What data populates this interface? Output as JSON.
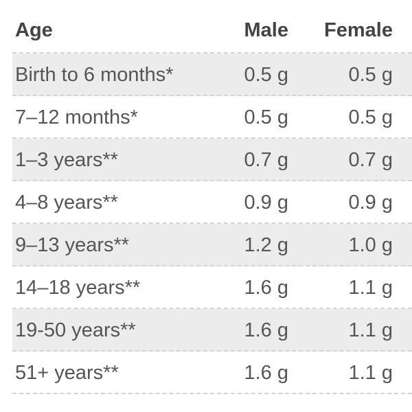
{
  "table": {
    "header": [
      "Age",
      "Male",
      "Female"
    ],
    "rows": [
      [
        "Birth to 6 months*",
        "0.5 g",
        "0.5 g"
      ],
      [
        "7–12 months*",
        "0.5 g",
        "0.5 g"
      ],
      [
        "1–3 years**",
        "0.7 g",
        "0.7 g"
      ],
      [
        "4–8 years**",
        "0.9 g",
        "0.9 g"
      ],
      [
        "9–13 years**",
        "1.2 g",
        "1.0 g"
      ],
      [
        "14–18 years**",
        "1.6 g",
        "1.1 g"
      ],
      [
        "19-50 years**",
        "1.6 g",
        "1.1 g"
      ],
      [
        "51+ years**",
        "1.6 g",
        "1.1 g"
      ]
    ]
  }
}
